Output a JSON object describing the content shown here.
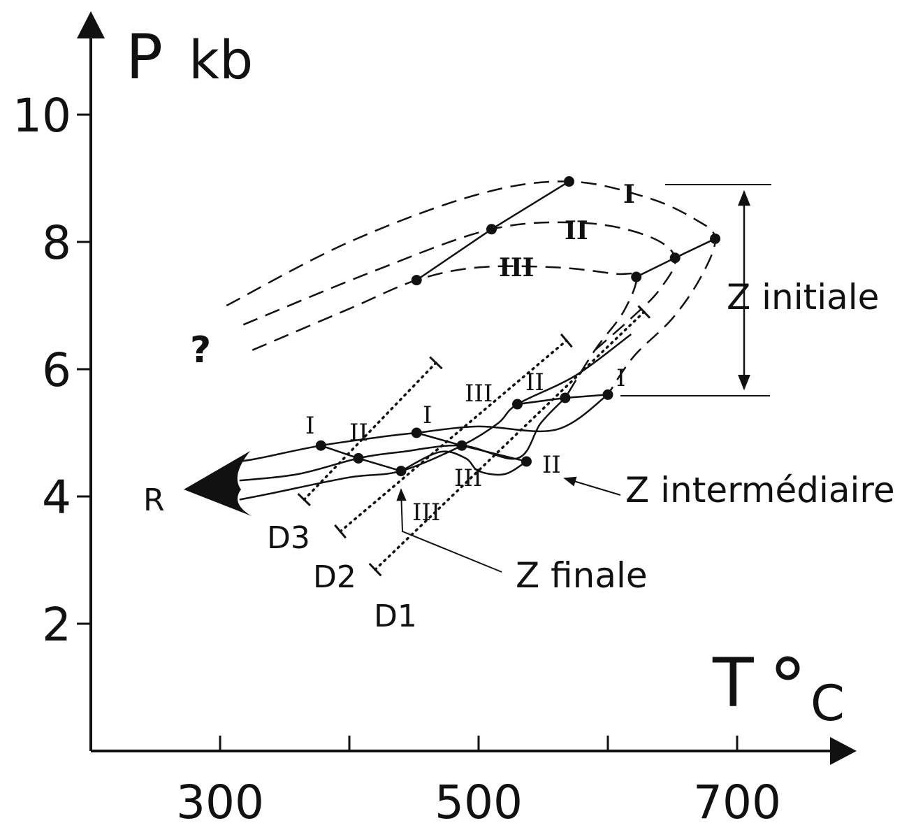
{
  "chart_data": {
    "type": "line",
    "title": "",
    "xlabel": "T °C",
    "ylabel": "P kb",
    "xlabel_main": "T",
    "xlabel_deg": "°",
    "xlabel_unit": "C",
    "ylabel_main": "P",
    "ylabel_unit": "kb",
    "xlim": [
      200,
      790
    ],
    "ylim": [
      0,
      11.6
    ],
    "x_ticks": [
      {
        "value": 300,
        "label": "300"
      },
      {
        "value": 400,
        "label": ""
      },
      {
        "value": 500,
        "label": "500"
      },
      {
        "value": 600,
        "label": ""
      },
      {
        "value": 700,
        "label": "700"
      }
    ],
    "y_ticks": [
      {
        "value": 2,
        "label": "2"
      },
      {
        "value": 4,
        "label": "4"
      },
      {
        "value": 6,
        "label": "6"
      },
      {
        "value": 8,
        "label": "8"
      },
      {
        "value": 10,
        "label": "10"
      }
    ],
    "grid": false,
    "points": [
      {
        "name": "zi-I-a",
        "x": 570,
        "y": 8.95
      },
      {
        "name": "zi-II-a",
        "x": 510,
        "y": 8.2
      },
      {
        "name": "zi-III-a",
        "x": 452,
        "y": 7.4
      },
      {
        "name": "zi-III-b",
        "x": 622,
        "y": 7.45
      },
      {
        "name": "zi-II-b",
        "x": 652,
        "y": 7.75
      },
      {
        "name": "zi-I-b",
        "x": 683,
        "y": 8.05
      },
      {
        "name": "zm-III",
        "x": 530,
        "y": 5.45
      },
      {
        "name": "zm-II",
        "x": 567,
        "y": 5.55
      },
      {
        "name": "zm-I",
        "x": 600,
        "y": 5.6
      },
      {
        "name": "zf-I",
        "x": 378,
        "y": 4.8
      },
      {
        "name": "zf-II",
        "x": 407,
        "y": 4.6
      },
      {
        "name": "zf-III",
        "x": 440,
        "y": 4.4
      },
      {
        "name": "z2-I",
        "x": 452,
        "y": 5.0
      },
      {
        "name": "z2-II",
        "x": 487,
        "y": 4.8
      },
      {
        "name": "z2-III",
        "x": 537,
        "y": 4.55
      }
    ],
    "solid_segments": [
      {
        "name": "zi-slope-lower",
        "x": [
          452,
          510,
          570
        ],
        "y": [
          7.4,
          8.2,
          8.95
        ]
      },
      {
        "name": "zi-slope-upper",
        "x": [
          622,
          652,
          683
        ],
        "y": [
          7.45,
          7.75,
          8.05
        ]
      },
      {
        "name": "zm-connector",
        "x": [
          530,
          567,
          600
        ],
        "y": [
          5.45,
          5.55,
          5.6
        ]
      },
      {
        "name": "zf-connector",
        "x": [
          378,
          407,
          440
        ],
        "y": [
          4.8,
          4.6,
          4.4
        ]
      },
      {
        "name": "z2-connector",
        "x": [
          452,
          487,
          537
        ],
        "y": [
          5.0,
          4.8,
          4.55
        ]
      }
    ],
    "dashed_paths": [
      {
        "name": "path-I-dashed",
        "x": [
          305,
          400,
          500,
          570,
          630,
          668,
          683,
          672,
          650,
          620,
          600
        ],
        "y": [
          7.0,
          8.0,
          8.75,
          8.95,
          8.7,
          8.35,
          8.05,
          7.45,
          6.8,
          6.2,
          5.6
        ]
      },
      {
        "name": "path-II-dashed",
        "x": [
          318,
          420,
          510,
          580,
          630,
          652,
          640,
          618,
          590
        ],
        "y": [
          6.7,
          7.55,
          8.2,
          8.3,
          8.1,
          7.75,
          7.25,
          6.8,
          6.3
        ]
      },
      {
        "name": "path-III-dashed",
        "x": [
          325,
          400,
          452,
          500,
          560,
          605,
          622,
          612,
          590,
          567
        ],
        "y": [
          6.3,
          6.95,
          7.4,
          7.6,
          7.6,
          7.5,
          7.45,
          6.9,
          6.3,
          5.55
        ]
      }
    ],
    "solid_paths": [
      {
        "name": "path-I-solid",
        "x": [
          600,
          560,
          500,
          452,
          430,
          378,
          330,
          315
        ],
        "y": [
          5.6,
          5.05,
          5.1,
          5.0,
          4.95,
          4.8,
          4.6,
          4.55
        ]
      },
      {
        "name": "path-II-solid",
        "x": [
          567,
          548,
          530,
          487,
          440,
          407,
          360,
          315
        ],
        "y": [
          5.55,
          5.15,
          4.6,
          4.8,
          4.7,
          4.6,
          4.35,
          4.25
        ]
      },
      {
        "name": "path-III-solid",
        "x": [
          618,
          575,
          530,
          515,
          487,
          440,
          400,
          340,
          315
        ],
        "y": [
          6.55,
          5.9,
          5.45,
          5.15,
          4.8,
          4.4,
          4.3,
          4.05,
          3.95
        ]
      },
      {
        "name": "path-III-loop",
        "x": [
          537,
          520,
          500,
          490,
          470,
          440
        ],
        "y": [
          4.55,
          4.35,
          4.4,
          4.6,
          4.7,
          4.4
        ]
      }
    ],
    "dotted_lines": [
      {
        "name": "D3",
        "x": [
          365,
          467
        ],
        "y": [
          3.95,
          6.1
        ]
      },
      {
        "name": "D2",
        "x": [
          393,
          568
        ],
        "y": [
          3.45,
          6.45
        ]
      },
      {
        "name": "D1",
        "x": [
          420,
          628
        ],
        "y": [
          2.85,
          6.9
        ]
      }
    ],
    "labels": {
      "question": "?",
      "R": "R",
      "D1": "D1",
      "D2": "D2",
      "D3": "D3",
      "z_initiale": "Z initiale",
      "z_intermediaire": "Z intermédiaire",
      "z_finale": "Z finale",
      "roman_I": "I",
      "roman_II": "II",
      "roman_III": "III"
    }
  }
}
